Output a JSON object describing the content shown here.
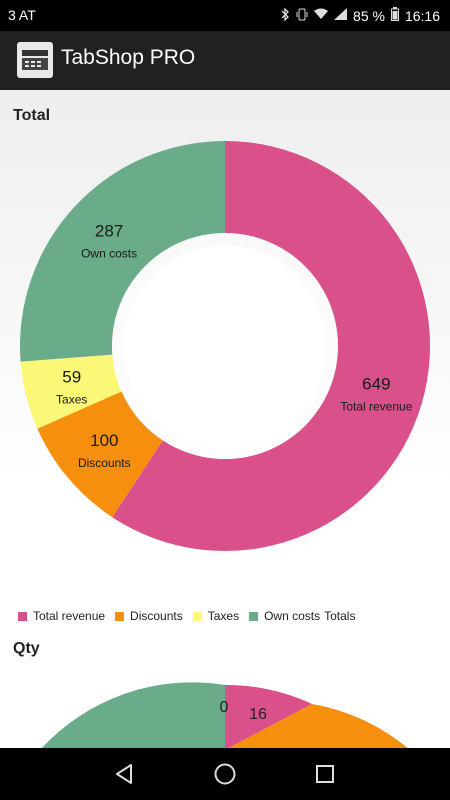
{
  "status_bar": {
    "carrier": "3 AT",
    "battery": "85 %",
    "time": "16:16"
  },
  "app": {
    "title": "TabShop PRO"
  },
  "sections": {
    "total_title": "Total",
    "qty_title": "Qty"
  },
  "legend": {
    "items": [
      {
        "label": "Total revenue",
        "color": "#d9508a"
      },
      {
        "label": "Discounts",
        "color": "#f68f0e"
      },
      {
        "label": "Taxes",
        "color": "#fbf777"
      },
      {
        "label": "Own costs",
        "color": "#6aab8a"
      }
    ],
    "suffix": "Totals"
  },
  "chart_data": [
    {
      "type": "pie",
      "title": "Total",
      "categories": [
        "Total revenue",
        "Discounts",
        "Taxes",
        "Own costs"
      ],
      "values": [
        649,
        100,
        59,
        287
      ],
      "colors": [
        "#d9508a",
        "#f68f0e",
        "#fbf777",
        "#6aab8a"
      ],
      "legend": "bottom",
      "legend_suffix": "Totals"
    },
    {
      "type": "pie",
      "title": "Qty",
      "partially_visible": true,
      "visible_labels": [
        "16",
        "0"
      ]
    }
  ]
}
